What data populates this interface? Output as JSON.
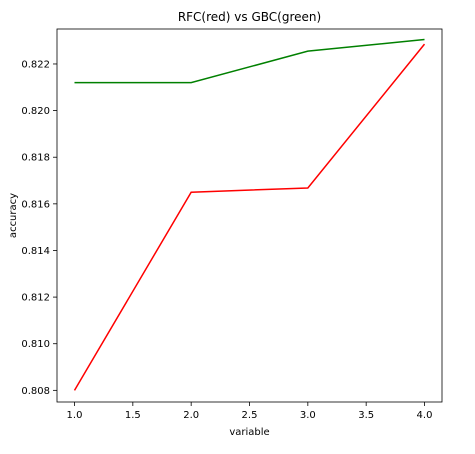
{
  "chart_data": {
    "type": "line",
    "title": "RFC(red) vs GBC(green)",
    "xlabel": "variable",
    "ylabel": "accuracy",
    "xlim": [
      0.85,
      4.15
    ],
    "ylim": [
      0.8075,
      0.8235
    ],
    "x_ticks": [
      "1.0",
      "1.5",
      "2.0",
      "2.5",
      "3.0",
      "3.5",
      "4.0"
    ],
    "y_ticks": [
      "0.808",
      "0.810",
      "0.812",
      "0.814",
      "0.816",
      "0.818",
      "0.820",
      "0.822"
    ],
    "grid": false,
    "series": [
      {
        "color": "#008000",
        "x": [
          1,
          2,
          3,
          4
        ],
        "y": [
          0.8212,
          0.8212,
          0.82255,
          0.82305
        ]
      },
      {
        "color": "#ff0000",
        "x": [
          1,
          2,
          3,
          4
        ],
        "y": [
          0.808,
          0.8165,
          0.81668,
          0.82285
        ]
      }
    ]
  }
}
